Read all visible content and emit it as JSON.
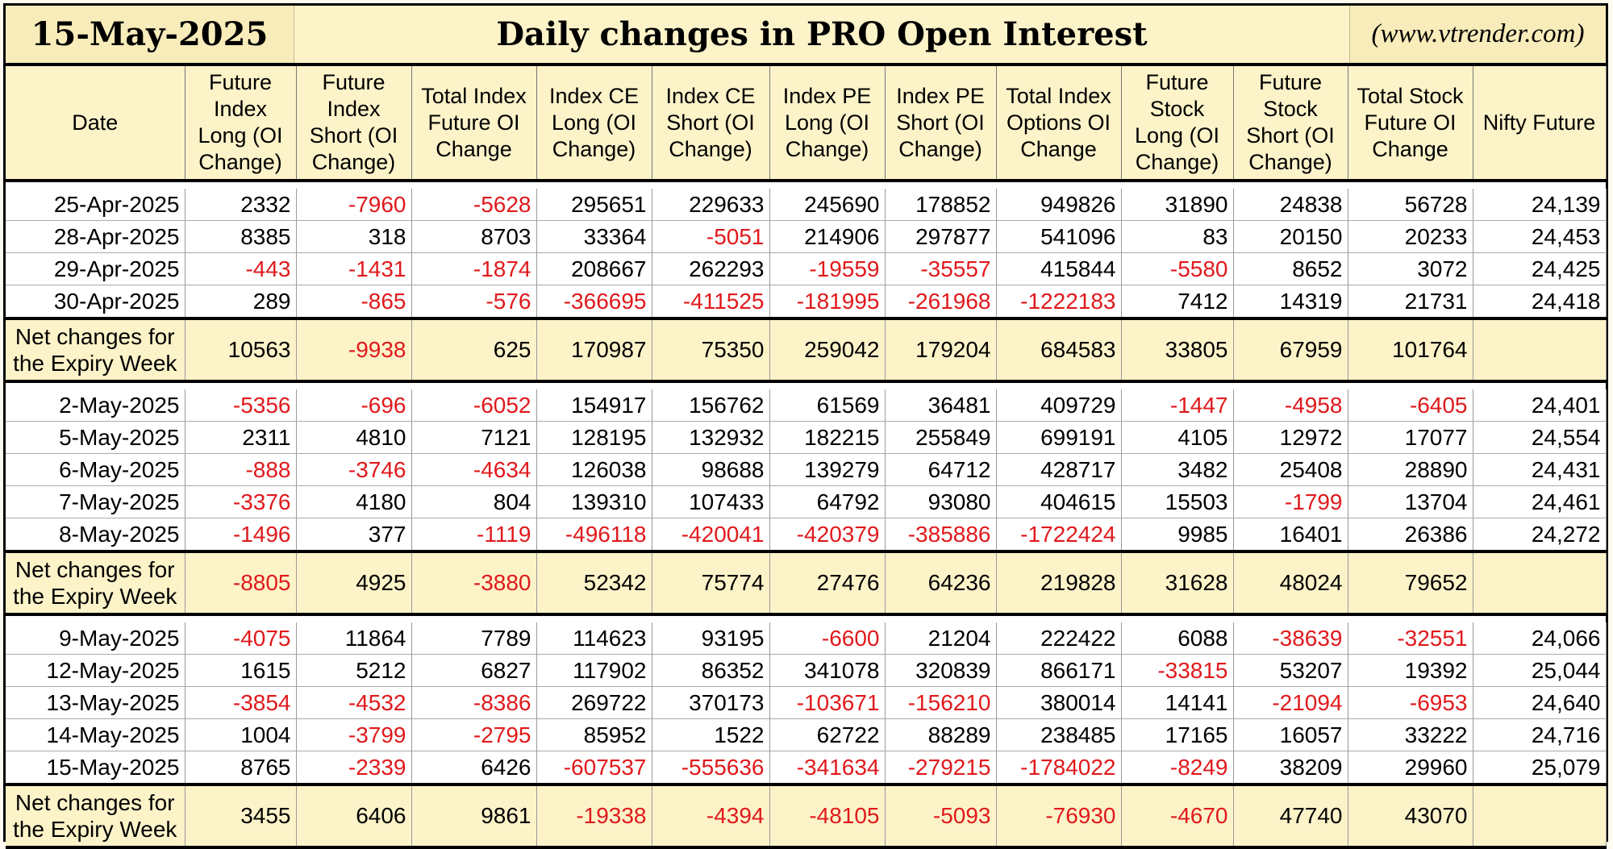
{
  "header": {
    "date": "15-May-2025",
    "title": "Daily changes in PRO Open Interest",
    "site": "(www.vtrender.com)"
  },
  "columns": [
    "Date",
    "Future Index Long (OI Change)",
    "Future Index Short (OI Change)",
    "Total Index Future OI Change",
    "Index CE Long (OI Change)",
    "Index CE Short (OI Change)",
    "Index PE Long (OI Change)",
    "Index PE Short (OI Change)",
    "Total Index Options OI Change",
    "Future Stock Long (OI Change)",
    "Future Stock Short (OI Change)",
    "Total Stock Future OI Change",
    "Nifty Future"
  ],
  "colors": {
    "negative": "#e0191c",
    "header_bg": "#fdf3c9"
  },
  "groups": [
    {
      "rows": [
        [
          "25-Apr-2025",
          "2332",
          "-7960",
          "-5628",
          "295651",
          "229633",
          "245690",
          "178852",
          "949826",
          "31890",
          "24838",
          "56728",
          "24,139"
        ],
        [
          "28-Apr-2025",
          "8385",
          "318",
          "8703",
          "33364",
          "-5051",
          "214906",
          "297877",
          "541096",
          "83",
          "20150",
          "20233",
          "24,453"
        ],
        [
          "29-Apr-2025",
          "-443",
          "-1431",
          "-1874",
          "208667",
          "262293",
          "-19559",
          "-35557",
          "415844",
          "-5580",
          "8652",
          "3072",
          "24,425"
        ],
        [
          "30-Apr-2025",
          "289",
          "-865",
          "-576",
          "-366695",
          "-411525",
          "-181995",
          "-261968",
          "-1222183",
          "7412",
          "14319",
          "21731",
          "24,418"
        ]
      ],
      "net": [
        "Net changes for the Expiry Week",
        "10563",
        "-9938",
        "625",
        "170987",
        "75350",
        "259042",
        "179204",
        "684583",
        "33805",
        "67959",
        "101764",
        ""
      ]
    },
    {
      "rows": [
        [
          "2-May-2025",
          "-5356",
          "-696",
          "-6052",
          "154917",
          "156762",
          "61569",
          "36481",
          "409729",
          "-1447",
          "-4958",
          "-6405",
          "24,401"
        ],
        [
          "5-May-2025",
          "2311",
          "4810",
          "7121",
          "128195",
          "132932",
          "182215",
          "255849",
          "699191",
          "4105",
          "12972",
          "17077",
          "24,554"
        ],
        [
          "6-May-2025",
          "-888",
          "-3746",
          "-4634",
          "126038",
          "98688",
          "139279",
          "64712",
          "428717",
          "3482",
          "25408",
          "28890",
          "24,431"
        ],
        [
          "7-May-2025",
          "-3376",
          "4180",
          "804",
          "139310",
          "107433",
          "64792",
          "93080",
          "404615",
          "15503",
          "-1799",
          "13704",
          "24,461"
        ],
        [
          "8-May-2025",
          "-1496",
          "377",
          "-1119",
          "-496118",
          "-420041",
          "-420379",
          "-385886",
          "-1722424",
          "9985",
          "16401",
          "26386",
          "24,272"
        ]
      ],
      "net": [
        "Net changes for the Expiry Week",
        "-8805",
        "4925",
        "-3880",
        "52342",
        "75774",
        "27476",
        "64236",
        "219828",
        "31628",
        "48024",
        "79652",
        ""
      ]
    },
    {
      "rows": [
        [
          "9-May-2025",
          "-4075",
          "11864",
          "7789",
          "114623",
          "93195",
          "-6600",
          "21204",
          "222422",
          "6088",
          "-38639",
          "-32551",
          "24,066"
        ],
        [
          "12-May-2025",
          "1615",
          "5212",
          "6827",
          "117902",
          "86352",
          "341078",
          "320839",
          "866171",
          "-33815",
          "53207",
          "19392",
          "25,044"
        ],
        [
          "13-May-2025",
          "-3854",
          "-4532",
          "-8386",
          "269722",
          "370173",
          "-103671",
          "-156210",
          "380014",
          "14141",
          "-21094",
          "-6953",
          "24,640"
        ],
        [
          "14-May-2025",
          "1004",
          "-3799",
          "-2795",
          "85952",
          "1522",
          "62722",
          "88289",
          "238485",
          "17165",
          "16057",
          "33222",
          "24,716"
        ],
        [
          "15-May-2025",
          "8765",
          "-2339",
          "6426",
          "-607537",
          "-555636",
          "-341634",
          "-279215",
          "-1784022",
          "-8249",
          "38209",
          "29960",
          "25,079"
        ]
      ],
      "net": [
        "Net changes for the Expiry Week",
        "3455",
        "6406",
        "9861",
        "-19338",
        "-4394",
        "-48105",
        "-5093",
        "-76930",
        "-4670",
        "47740",
        "43070",
        ""
      ]
    }
  ]
}
